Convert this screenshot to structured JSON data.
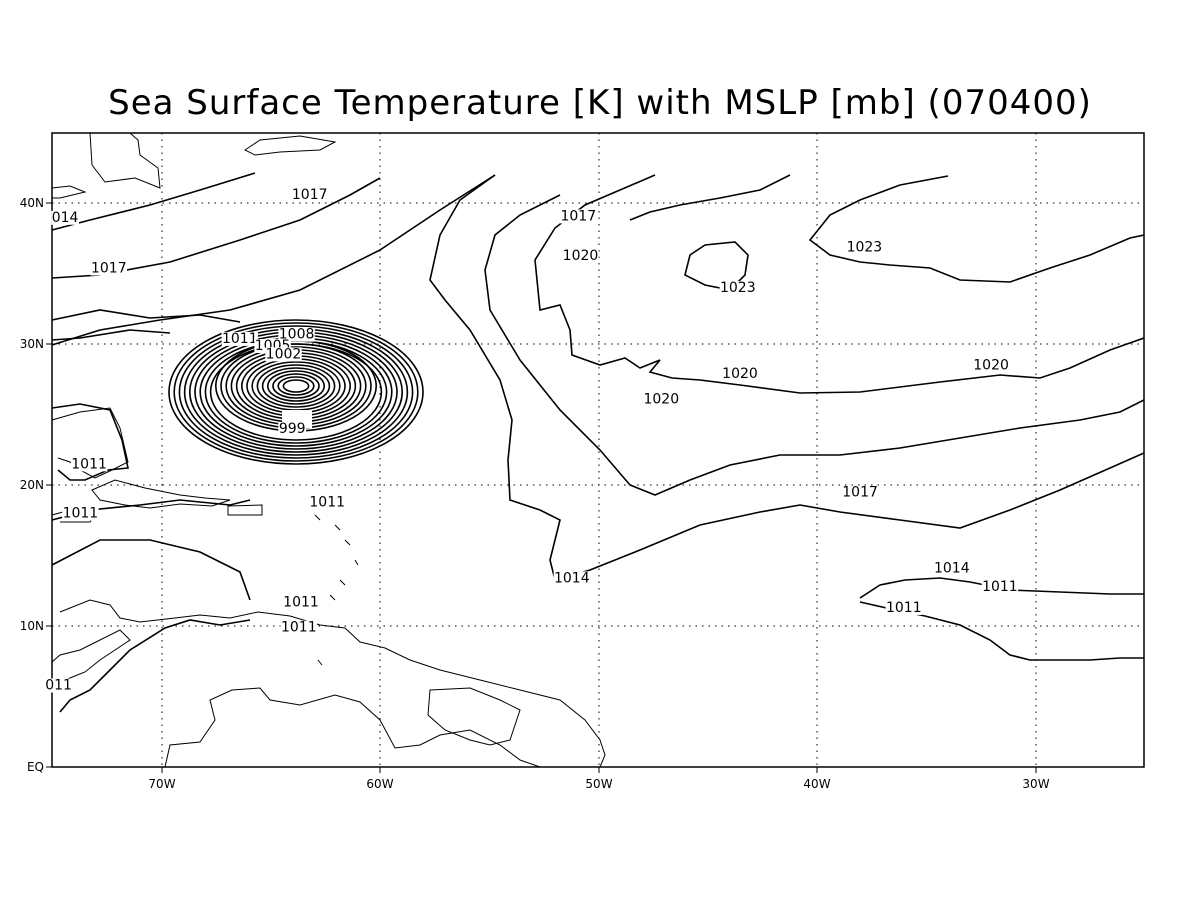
{
  "title": "Sea Surface Temperature [K] with MSLP [mb] (070400)",
  "axes": {
    "x_ticks": [
      "70W",
      "60W",
      "50W",
      "40W",
      "30W"
    ],
    "y_ticks": [
      "EQ",
      "10N",
      "20N",
      "30N",
      "40N"
    ]
  },
  "contour_labels": [
    {
      "text": "1017",
      "lon": -63.2,
      "lat": 40.3
    },
    {
      "text": "014",
      "lon": -74.4,
      "lat": 38.7
    },
    {
      "text": "1017",
      "lon": -72.4,
      "lat": 35.1
    },
    {
      "text": "1011",
      "lon": -66.4,
      "lat": 30.1
    },
    {
      "text": "1008",
      "lon": -63.8,
      "lat": 30.4
    },
    {
      "text": "1005",
      "lon": -64.9,
      "lat": 29.6
    },
    {
      "text": "1002",
      "lon": -64.4,
      "lat": 29.0
    },
    {
      "text": "999",
      "lon": -64.0,
      "lat": 23.7
    },
    {
      "text": "1011",
      "lon": -73.3,
      "lat": 21.2
    },
    {
      "text": "1011",
      "lon": -73.7,
      "lat": 17.7
    },
    {
      "text": "1011",
      "lon": -62.4,
      "lat": 18.5
    },
    {
      "text": "1011",
      "lon": -63.6,
      "lat": 11.4
    },
    {
      "text": "1011",
      "lon": -63.7,
      "lat": 9.6
    },
    {
      "text": "011",
      "lon": -74.7,
      "lat": 5.5
    },
    {
      "text": "1017",
      "lon": -50.9,
      "lat": 38.8
    },
    {
      "text": "1020",
      "lon": -50.8,
      "lat": 36.0
    },
    {
      "text": "1023",
      "lon": -43.6,
      "lat": 33.7
    },
    {
      "text": "1023",
      "lon": -37.8,
      "lat": 36.6
    },
    {
      "text": "1020",
      "lon": -43.5,
      "lat": 27.6
    },
    {
      "text": "1020",
      "lon": -47.1,
      "lat": 25.8
    },
    {
      "text": "1020",
      "lon": -32.0,
      "lat": 28.2
    },
    {
      "text": "1017",
      "lon": -38.0,
      "lat": 19.2
    },
    {
      "text": "1014",
      "lon": -33.8,
      "lat": 13.8
    },
    {
      "text": "1014",
      "lon": -51.2,
      "lat": 13.1
    },
    {
      "text": "1011",
      "lon": -31.6,
      "lat": 12.5
    },
    {
      "text": "1011",
      "lon": -36.0,
      "lat": 11.0
    }
  ]
}
